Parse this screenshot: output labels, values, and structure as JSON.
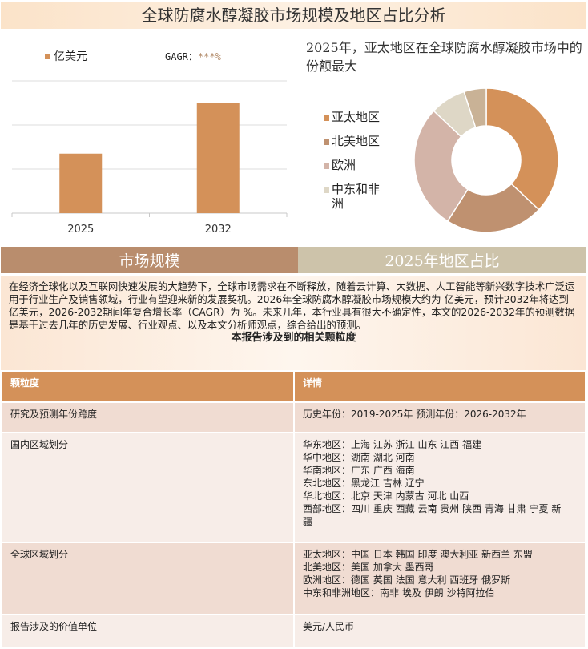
{
  "title": "全球防腐水醇凝胶市场规模及地区占比分析",
  "colors": {
    "bar": "#d49159",
    "tab1": "#b98d6d",
    "tab2": "#cdc3aa"
  },
  "chart_data": [
    {
      "type": "bar",
      "categories": [
        "2025",
        "2032"
      ],
      "series": [
        {
          "name": "亿美元",
          "values": [
            2.7,
            5.0
          ]
        }
      ],
      "ylim": [
        0,
        6
      ],
      "grid": true,
      "legend": "top-left",
      "annotation": {
        "label": "GAGR：",
        "value": "***%"
      }
    },
    {
      "type": "pie",
      "title": "2025年，亚太地区在全球防腐水醇凝胶市场中的份额最大",
      "labels": [
        "亚太地区",
        "北美地区",
        "欧洲",
        "中东和非洲",
        ""
      ],
      "values": [
        37,
        22,
        28,
        8,
        5
      ],
      "colors": [
        "#d49159",
        "#bf9170",
        "#d3b4a8",
        "#ded7c6",
        "#c9b296"
      ],
      "donut": true,
      "legend": "left"
    }
  ],
  "tabs": [
    "市场规模",
    "2025年地区占比"
  ],
  "description": "在经济全球化以及互联网快速发展的大趋势下，全球市场需求在不断释放，随着云计算、大数据、人工智能等新兴数字技术广泛运用于行业生产及销售领域，行业有望迎来新的发展契机。2026年全球防腐水醇凝胶市场规模大约为 亿美元，预计2032年将达到 亿美元，2026-2032期间年复合增长率（CAGR）为 %。未来几年，本行业具有很大不确定性，本文的2026-2032年的预测数据是基于过去几年的历史发展、行业观点、以及本文分析师观点，综合给出的预测。",
  "table": {
    "title": "本报告涉及到的相关颗粒度",
    "headers": [
      "颗粒度",
      "详情"
    ],
    "rows": [
      {
        "label": "研究及预测年份跨度",
        "detail": "历史年份：2019-2025年 预测年份：2026-2032年"
      },
      {
        "label": "国内区域划分",
        "detail": "华东地区：上海  江苏  浙江  山东  江西  福建\n华中地区：湖南  湖北  河南\n华南地区：广东  广西  海南\n东北地区：黑龙江  吉林  辽宁\n华北地区：北京  天津  内蒙古  河北  山西\n西部地区：四川  重庆  西藏  云南  贵州  陕西  青海  甘肃  宁夏  新疆"
      },
      {
        "label": "全球区域划分",
        "detail": "亚太地区：中国  日本  韩国  印度  澳大利亚  新西兰  东盟\n北美地区：美国  加拿大  墨西哥\n欧洲地区：德国  英国  法国  意大利  西班牙  俄罗斯\n中东和非洲地区：南非  埃及  伊朗  沙特阿拉伯"
      },
      {
        "label": "报告涉及的价值单位",
        "detail": "美元/人民币"
      }
    ]
  }
}
